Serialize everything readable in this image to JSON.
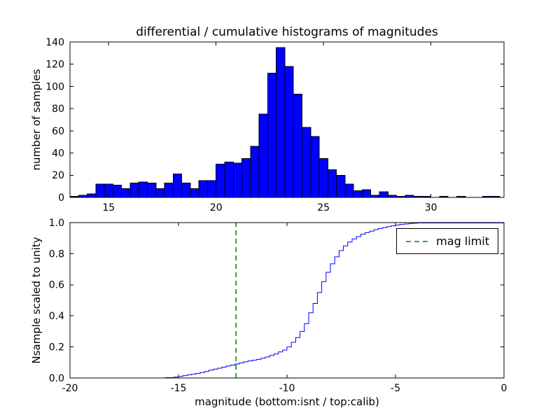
{
  "figure": {
    "background_color": "#ffffff",
    "frame_color": "#000000"
  },
  "chart_data": [
    {
      "type": "bar",
      "subplot": "top",
      "title": "differential / cumulative histograms of magnitudes",
      "xlabel": "",
      "ylabel": "number of samples",
      "xlim": [
        13.2,
        33.4
      ],
      "ylim": [
        0,
        140
      ],
      "xticks": [
        15,
        20,
        25,
        30
      ],
      "xtick_labels": [
        "15",
        "20",
        "25",
        "30"
      ],
      "yticks": [
        0,
        20,
        40,
        60,
        80,
        100,
        120,
        140
      ],
      "ytick_labels": [
        "0",
        "20",
        "40",
        "60",
        "80",
        "100",
        "120",
        "140"
      ],
      "grid": false,
      "legend": null,
      "bar_color": "#0000ff",
      "bar_edge_color": "#000000",
      "bin_width": 0.4,
      "bin_left_edges": [
        13.2,
        13.6,
        14.0,
        14.4,
        14.8,
        15.2,
        15.6,
        16.0,
        16.4,
        16.8,
        17.2,
        17.6,
        18.0,
        18.4,
        18.8,
        19.2,
        19.6,
        20.0,
        20.4,
        20.8,
        21.2,
        21.6,
        22.0,
        22.4,
        22.8,
        23.2,
        23.6,
        24.0,
        24.4,
        24.8,
        25.2,
        25.6,
        26.0,
        26.4,
        26.8,
        27.2,
        27.6,
        28.0,
        28.4,
        28.8,
        29.2,
        29.6,
        30.0,
        30.4,
        30.8,
        31.2,
        31.6,
        32.0,
        32.4,
        32.8
      ],
      "values": [
        1,
        2,
        3,
        12,
        12,
        11,
        8,
        13,
        14,
        13,
        8,
        13,
        21,
        13,
        8,
        15,
        15,
        30,
        32,
        31,
        35,
        46,
        75,
        112,
        135,
        118,
        93,
        63,
        55,
        35,
        25,
        20,
        12,
        6,
        7,
        2,
        5,
        2,
        1,
        2,
        1,
        1,
        0,
        1,
        0,
        1,
        0,
        0,
        1,
        1
      ]
    },
    {
      "type": "line",
      "subplot": "bottom",
      "style": "step",
      "xlabel": "magnitude (bottom:isnt / top:calib)",
      "ylabel": "Nsample scaled to unity",
      "xlim": [
        -20,
        0
      ],
      "ylim": [
        0,
        1.0
      ],
      "xticks": [
        -20,
        -15,
        -10,
        -5,
        0
      ],
      "xtick_labels": [
        "-20",
        "-15",
        "-10",
        "-5",
        "0"
      ],
      "yticks": [
        0.0,
        0.2,
        0.4,
        0.6,
        0.8,
        1.0
      ],
      "ytick_labels": [
        "0.0",
        "0.2",
        "0.4",
        "0.6",
        "0.8",
        "1.0"
      ],
      "grid": false,
      "line_color": "#0000ff",
      "x": [
        -20.0,
        -15.6,
        -15.2,
        -15.0,
        -14.8,
        -14.6,
        -14.4,
        -14.2,
        -14.0,
        -13.8,
        -13.6,
        -13.4,
        -13.2,
        -13.0,
        -12.8,
        -12.6,
        -12.4,
        -12.2,
        -12.0,
        -11.8,
        -11.6,
        -11.4,
        -11.2,
        -11.0,
        -10.8,
        -10.6,
        -10.4,
        -10.2,
        -10.0,
        -9.8,
        -9.6,
        -9.4,
        -9.2,
        -9.0,
        -8.8,
        -8.6,
        -8.4,
        -8.2,
        -8.0,
        -7.8,
        -7.6,
        -7.4,
        -7.2,
        -7.0,
        -6.8,
        -6.6,
        -6.4,
        -6.2,
        -6.0,
        -5.8,
        -5.6,
        -5.4,
        -5.2,
        -5.0,
        -4.8,
        -4.6,
        -4.4,
        -4.2,
        -4.0,
        0.0
      ],
      "y": [
        0.0,
        0.002,
        0.006,
        0.01,
        0.015,
        0.02,
        0.025,
        0.03,
        0.035,
        0.042,
        0.05,
        0.057,
        0.063,
        0.07,
        0.077,
        0.083,
        0.09,
        0.097,
        0.104,
        0.11,
        0.115,
        0.12,
        0.127,
        0.135,
        0.145,
        0.155,
        0.168,
        0.18,
        0.2,
        0.23,
        0.26,
        0.3,
        0.35,
        0.42,
        0.48,
        0.55,
        0.62,
        0.68,
        0.735,
        0.78,
        0.82,
        0.85,
        0.875,
        0.895,
        0.91,
        0.925,
        0.935,
        0.945,
        0.955,
        0.962,
        0.968,
        0.974,
        0.979,
        0.984,
        0.988,
        0.991,
        0.994,
        0.996,
        0.998,
        1.0
      ],
      "vline": {
        "x": -12.35,
        "color": "#008000",
        "linestyle": "dashed",
        "label": "mag limit"
      },
      "legend": {
        "position": "upper right",
        "entries": [
          "mag limit"
        ]
      }
    }
  ]
}
